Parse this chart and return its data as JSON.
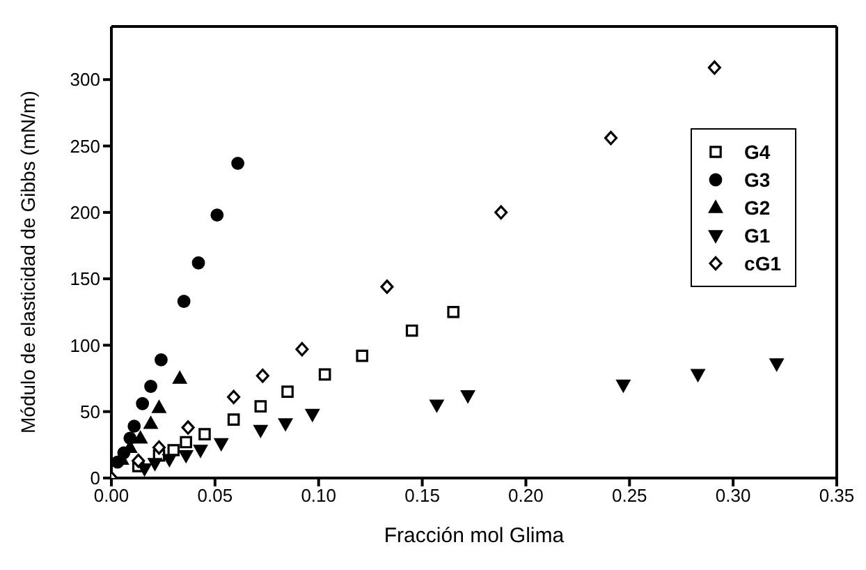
{
  "chart_data": {
    "type": "scatter",
    "xlabel": "Fracción mol Glima",
    "ylabel": "Módulo de elasticidad de Gibbs (mN/m)",
    "xlim": [
      0,
      0.35
    ],
    "ylim": [
      0,
      340
    ],
    "xticks": [
      {
        "value": 0,
        "label": "0.00"
      },
      {
        "value": 0.05,
        "label": "0.05"
      },
      {
        "value": 0.1,
        "label": "0.10"
      },
      {
        "value": 0.15,
        "label": "0.15"
      },
      {
        "value": 0.2,
        "label": "0.20"
      },
      {
        "value": 0.25,
        "label": "0.25"
      },
      {
        "value": 0.3,
        "label": "0.30"
      },
      {
        "value": 0.35,
        "label": "0.35"
      }
    ],
    "yticks": [
      0,
      50,
      100,
      150,
      200,
      250,
      300
    ],
    "legend": "top right",
    "series": [
      {
        "name": "G4",
        "color": "#000000",
        "marker": "square-open",
        "x": [
          0.013,
          0.023,
          0.03,
          0.036,
          0.045,
          0.059,
          0.072,
          0.085,
          0.103,
          0.121,
          0.145,
          0.165
        ],
        "values": [
          9,
          17,
          21,
          27,
          33,
          44,
          54,
          65,
          78,
          92,
          111,
          125
        ]
      },
      {
        "name": "G3",
        "color": "#000000",
        "marker": "circle",
        "x": [
          0.003,
          0.006,
          0.009,
          0.011,
          0.015,
          0.019,
          0.024,
          0.035,
          0.042,
          0.051,
          0.061
        ],
        "values": [
          12,
          19,
          30,
          39,
          56,
          69,
          89,
          133,
          162,
          198,
          237
        ]
      },
      {
        "name": "G2",
        "color": "#000000",
        "marker": "triangle",
        "x": [
          0.005,
          0.009,
          0.014,
          0.019,
          0.023,
          0.033
        ],
        "values": [
          14,
          23,
          30,
          41,
          53,
          75
        ]
      },
      {
        "name": "G1",
        "color": "#000000",
        "marker": "triangle_down",
        "x": [
          0.016,
          0.021,
          0.028,
          0.036,
          0.043,
          0.053,
          0.072,
          0.084,
          0.097,
          0.157,
          0.172,
          0.247,
          0.283,
          0.321
        ],
        "values": [
          7,
          11,
          14,
          17,
          21,
          26,
          36,
          41,
          48,
          55,
          62,
          70,
          78,
          86
        ]
      },
      {
        "name": "cG1",
        "color": "#000000",
        "marker": "diamond-open",
        "x": [
          0,
          0.013,
          0.023,
          0.037,
          0.059,
          0.073,
          0.092,
          0.133,
          0.188,
          0.241,
          0.291
        ],
        "values": [
          0,
          13,
          23,
          38,
          61,
          77,
          97,
          144,
          200,
          256,
          309
        ]
      }
    ]
  }
}
